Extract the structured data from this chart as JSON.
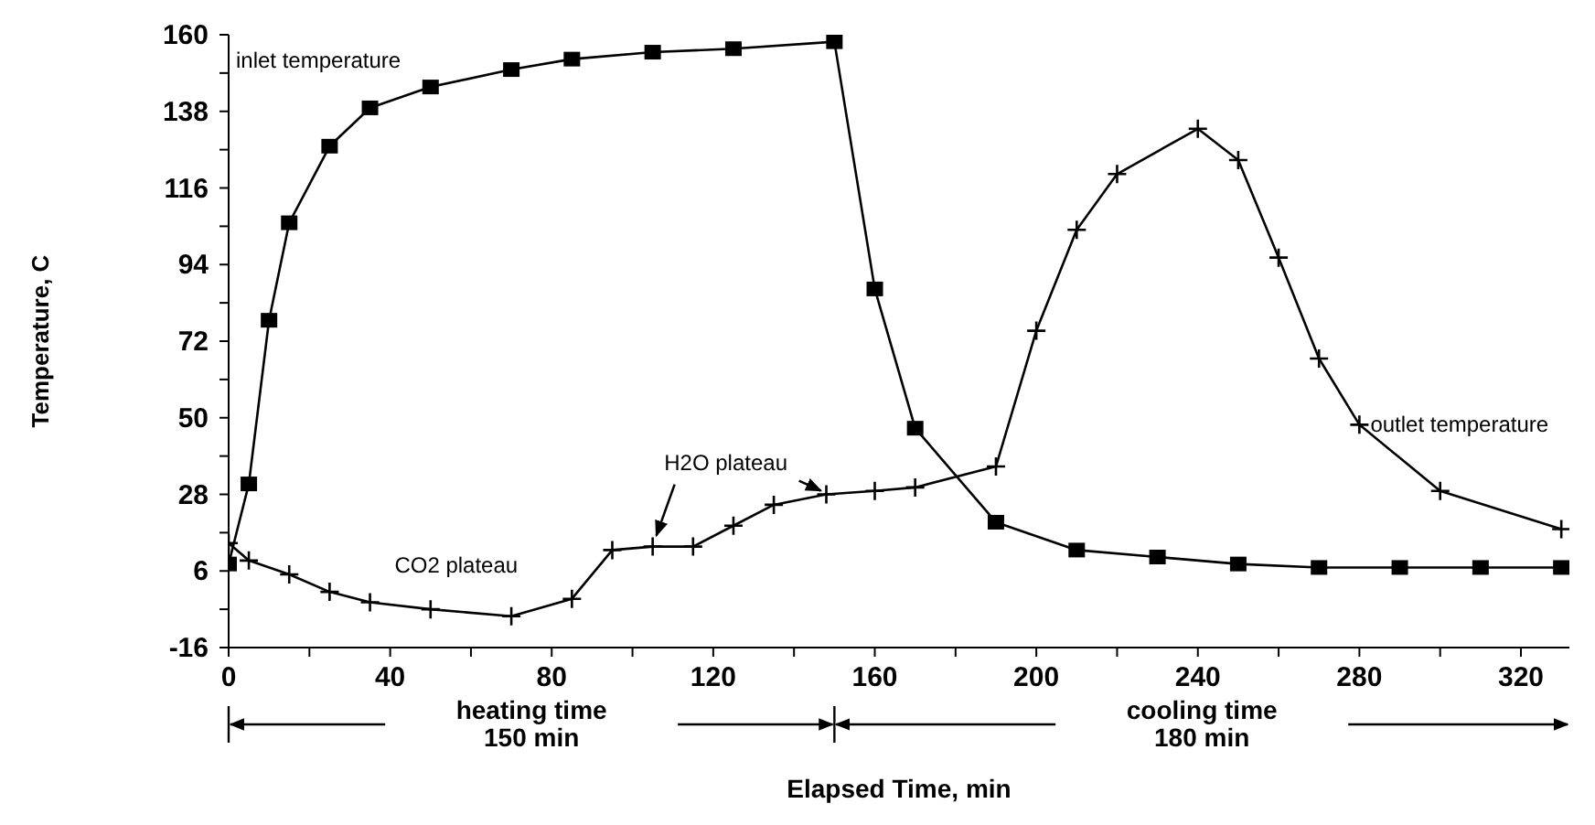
{
  "chart_data": {
    "type": "line",
    "xlabel": "Elapsed Time, min",
    "ylabel": "Temperature, C",
    "xlim": [
      0,
      332
    ],
    "ylim": [
      -16,
      160
    ],
    "xticks": [
      0,
      {
        "value": 20,
        "label": null
      },
      40,
      {
        "value": 60,
        "label": null
      },
      80,
      {
        "value": 100,
        "label": null
      },
      120,
      {
        "value": 140,
        "label": null
      },
      160,
      {
        "value": 180,
        "label": null
      },
      200,
      {
        "value": 220,
        "label": null
      },
      240,
      {
        "value": 260,
        "label": null
      },
      280,
      {
        "value": 300,
        "label": null
      },
      320
    ],
    "yticks": [
      -16,
      {
        "value": -5,
        "label": null
      },
      6,
      {
        "value": 17,
        "label": null
      },
      28,
      {
        "value": 39,
        "label": null
      },
      50,
      {
        "value": 61,
        "label": null
      },
      72,
      {
        "value": 83,
        "label": null
      },
      94,
      {
        "value": 105,
        "label": null
      },
      116,
      {
        "value": 127,
        "label": null
      },
      138,
      {
        "value": 149,
        "label": null
      },
      160
    ],
    "series": [
      {
        "name": "inlet temperature",
        "color": "#000000",
        "marker": "square",
        "x": [
          0,
          5,
          10,
          15,
          25,
          35,
          50,
          70,
          85,
          105,
          125,
          150,
          160,
          170,
          190,
          210,
          230,
          250,
          270,
          290,
          310,
          330
        ],
        "values": [
          8,
          31,
          78,
          106,
          128,
          139,
          145,
          150,
          153,
          155,
          156,
          158,
          87,
          47,
          20,
          12,
          10,
          8,
          7,
          7,
          7,
          7
        ]
      },
      {
        "name": "outlet temperature",
        "color": "#000000",
        "marker": "cross",
        "x": [
          0,
          5,
          15,
          25,
          35,
          50,
          70,
          85,
          95,
          105,
          115,
          125,
          135,
          148,
          160,
          170,
          190,
          200,
          210,
          220,
          240,
          250,
          260,
          270,
          280,
          300,
          330
        ],
        "values": [
          14,
          9,
          5,
          0,
          -3,
          -5,
          -7,
          -2,
          12,
          13,
          13,
          19,
          25,
          28,
          29,
          30,
          36,
          75,
          104,
          120,
          133,
          124,
          96,
          67,
          48,
          29,
          18
        ]
      }
    ],
    "annotations": [
      {
        "text": "CO2 plateau",
        "x": 50,
        "y": -5
      },
      {
        "text": "H2O plateau",
        "x": 105,
        "y": 13
      },
      "heating time\n150 min",
      "cooling time\n180 min"
    ]
  }
}
